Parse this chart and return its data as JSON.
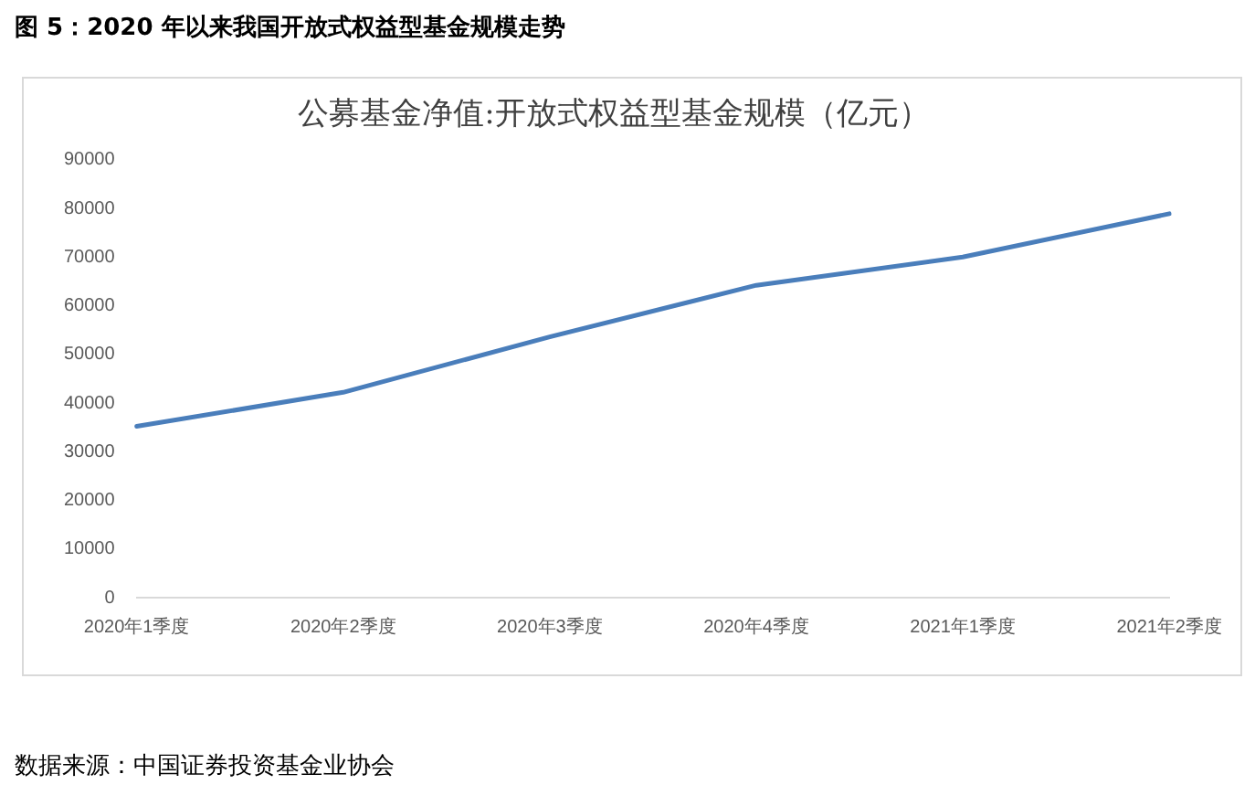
{
  "chart_data": {
    "type": "line",
    "title": "图 5：2020 年以来我国开放式权益型基金规模走势",
    "subtitle": "公募基金净值:开放式权益型基金规模（亿元）",
    "categories": [
      "2020年1季度",
      "2020年2季度",
      "2020年3季度",
      "2020年4季度",
      "2021年1季度",
      "2021年2季度"
    ],
    "series": [
      {
        "color": "#4a7ebb",
        "values": [
          35200,
          42200,
          53600,
          64200,
          70000,
          78900
        ]
      }
    ],
    "ylim": [
      0,
      90000
    ],
    "yticks": [
      0,
      10000,
      20000,
      30000,
      40000,
      50000,
      60000,
      70000,
      80000,
      90000
    ],
    "grid": false,
    "legend": false,
    "marker": "none",
    "line_style": "solid",
    "annotations": [
      "数据来源：中国证券投资基金业协会"
    ]
  }
}
